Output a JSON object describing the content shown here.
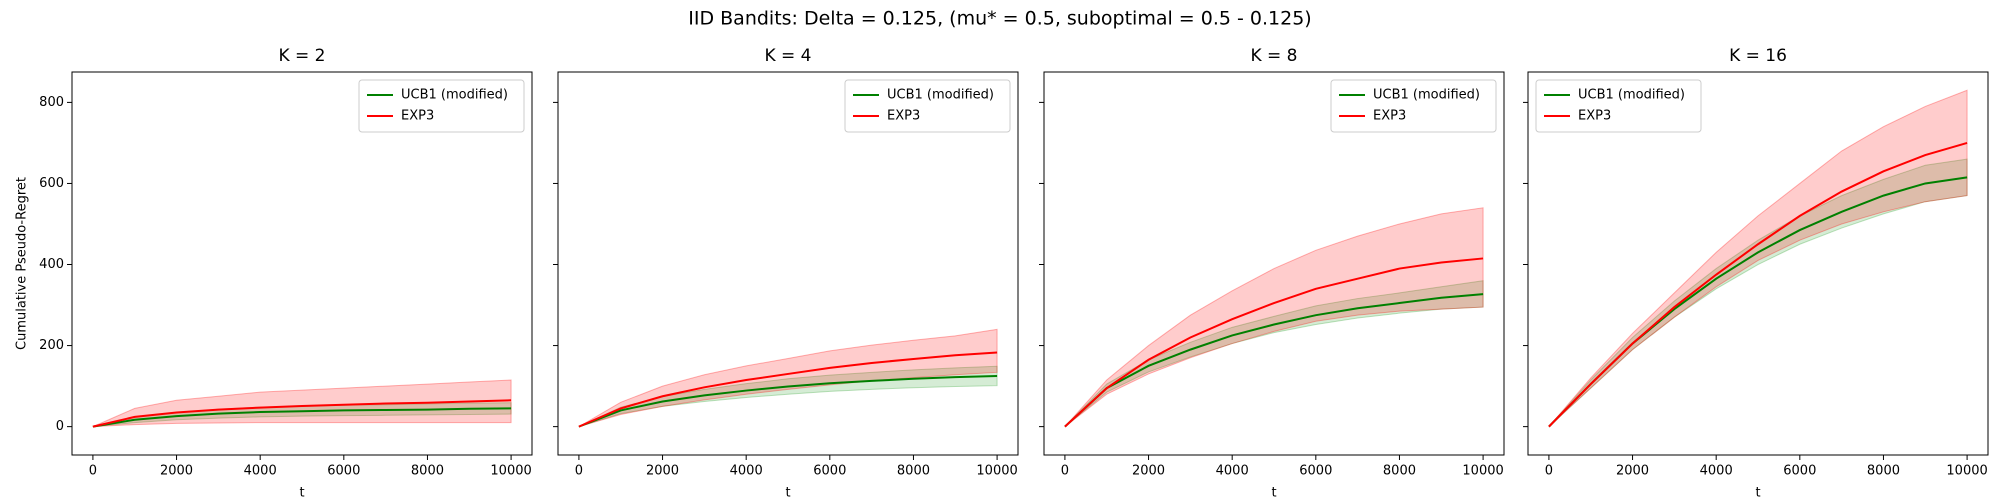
{
  "title": "IID Bandits: Delta = 0.125, (mu* = 0.5, suboptimal = 0.5 - 0.125)",
  "chart_data": [
    {
      "type": "line",
      "title": "K = 2",
      "x_label": "t",
      "y_label": "Cumulative Pseudo-Regret",
      "x": [
        0,
        1000,
        2000,
        3000,
        4000,
        5000,
        6000,
        7000,
        8000,
        9000,
        10000
      ],
      "xlim": [
        -500,
        10500
      ],
      "ylim": [
        -70,
        875
      ],
      "xticks": [
        0,
        2000,
        4000,
        6000,
        8000,
        10000
      ],
      "yticks": [
        0,
        200,
        400,
        600,
        800
      ],
      "ytick_labels": true,
      "legend": "upper right",
      "series": [
        {
          "name": "UCB1 (modified)",
          "color": "#008000",
          "band_color": "#2ca02c",
          "values": [
            0,
            17,
            26,
            32,
            36,
            38,
            40,
            41,
            42,
            44,
            45
          ],
          "lower": [
            0,
            10,
            17,
            21,
            24,
            26,
            27,
            28,
            29,
            30,
            31
          ],
          "upper": [
            0,
            24,
            35,
            43,
            48,
            50,
            53,
            54,
            56,
            58,
            59
          ]
        },
        {
          "name": "EXP3",
          "color": "#ff0000",
          "band_color": "#ff0000",
          "values": [
            0,
            24,
            35,
            42,
            47,
            51,
            54,
            57,
            59,
            62,
            65
          ],
          "lower": [
            0,
            5,
            8,
            9,
            10,
            10,
            10,
            10,
            10,
            10,
            10
          ],
          "upper": [
            0,
            45,
            65,
            75,
            85,
            90,
            95,
            100,
            105,
            110,
            115
          ]
        }
      ]
    },
    {
      "type": "line",
      "title": "K = 4",
      "x_label": "t",
      "x": [
        0,
        1000,
        2000,
        3000,
        4000,
        5000,
        6000,
        7000,
        8000,
        9000,
        10000
      ],
      "xlim": [
        -500,
        10500
      ],
      "ylim": [
        -70,
        875
      ],
      "xticks": [
        0,
        2000,
        4000,
        6000,
        8000,
        10000
      ],
      "yticks": [
        0,
        200,
        400,
        600,
        800
      ],
      "ytick_labels": false,
      "legend": "upper right",
      "series": [
        {
          "name": "UCB1 (modified)",
          "color": "#008000",
          "band_color": "#2ca02c",
          "values": [
            0,
            40,
            62,
            77,
            89,
            99,
            107,
            113,
            118,
            122,
            125
          ],
          "lower": [
            0,
            32,
            50,
            62,
            72,
            80,
            87,
            92,
            96,
            99,
            101
          ],
          "upper": [
            0,
            48,
            74,
            92,
            106,
            118,
            127,
            134,
            140,
            145,
            149
          ]
        },
        {
          "name": "EXP3",
          "color": "#ff0000",
          "band_color": "#ff0000",
          "values": [
            0,
            45,
            75,
            97,
            115,
            130,
            145,
            157,
            167,
            176,
            183
          ],
          "lower": [
            0,
            30,
            50,
            66,
            80,
            92,
            103,
            113,
            121,
            128,
            134
          ],
          "upper": [
            0,
            60,
            100,
            128,
            150,
            168,
            187,
            201,
            213,
            224,
            240
          ]
        }
      ]
    },
    {
      "type": "line",
      "title": "K = 8",
      "x_label": "t",
      "x": [
        0,
        1000,
        2000,
        3000,
        4000,
        5000,
        6000,
        7000,
        8000,
        9000,
        10000
      ],
      "xlim": [
        -500,
        10500
      ],
      "ylim": [
        -70,
        875
      ],
      "xticks": [
        0,
        2000,
        4000,
        6000,
        8000,
        10000
      ],
      "yticks": [
        0,
        200,
        400,
        600,
        800
      ],
      "ytick_labels": false,
      "legend": "upper right",
      "series": [
        {
          "name": "UCB1 (modified)",
          "color": "#008000",
          "band_color": "#2ca02c",
          "values": [
            0,
            95,
            150,
            190,
            225,
            252,
            275,
            292,
            305,
            318,
            327
          ],
          "lower": [
            0,
            85,
            135,
            172,
            205,
            232,
            252,
            268,
            280,
            290,
            295
          ],
          "upper": [
            0,
            105,
            165,
            208,
            245,
            272,
            298,
            316,
            330,
            345,
            360
          ]
        },
        {
          "name": "EXP3",
          "color": "#ff0000",
          "band_color": "#ff0000",
          "values": [
            0,
            95,
            165,
            220,
            265,
            305,
            340,
            365,
            390,
            405,
            415
          ],
          "lower": [
            0,
            80,
            130,
            170,
            205,
            235,
            260,
            275,
            285,
            290,
            295
          ],
          "upper": [
            0,
            115,
            200,
            275,
            335,
            390,
            435,
            470,
            500,
            525,
            540
          ]
        }
      ]
    },
    {
      "type": "line",
      "title": "K = 16",
      "x_label": "t",
      "x": [
        0,
        1000,
        2000,
        3000,
        4000,
        5000,
        6000,
        7000,
        8000,
        9000,
        10000
      ],
      "xlim": [
        -500,
        10500
      ],
      "ylim": [
        -70,
        875
      ],
      "xticks": [
        0,
        2000,
        4000,
        6000,
        8000,
        10000
      ],
      "yticks": [
        0,
        200,
        400,
        600,
        800
      ],
      "ytick_labels": false,
      "legend": "upper left",
      "series": [
        {
          "name": "UCB1 (modified)",
          "color": "#008000",
          "band_color": "#2ca02c",
          "values": [
            0,
            105,
            205,
            290,
            365,
            430,
            485,
            530,
            570,
            600,
            615
          ],
          "lower": [
            0,
            95,
            190,
            270,
            340,
            400,
            450,
            490,
            525,
            555,
            570
          ],
          "upper": [
            0,
            115,
            220,
            310,
            390,
            460,
            520,
            570,
            610,
            645,
            660
          ]
        },
        {
          "name": "EXP3",
          "color": "#ff0000",
          "band_color": "#ff0000",
          "values": [
            0,
            105,
            205,
            295,
            375,
            450,
            520,
            580,
            630,
            670,
            700
          ],
          "lower": [
            0,
            95,
            190,
            270,
            345,
            410,
            460,
            500,
            530,
            555,
            570
          ],
          "upper": [
            0,
            120,
            230,
            330,
            430,
            520,
            600,
            680,
            740,
            790,
            830
          ]
        }
      ]
    }
  ]
}
